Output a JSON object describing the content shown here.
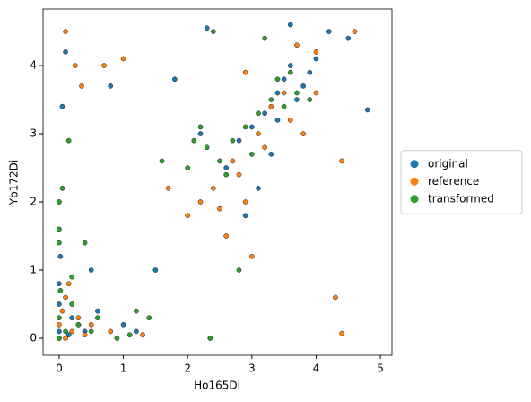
{
  "chart_data": {
    "type": "scatter",
    "xlabel": "Ho165Di",
    "ylabel": "Yb172Di",
    "xlim": [
      -0.25,
      5.18
    ],
    "ylim": [
      -0.25,
      4.83
    ],
    "xticks": [
      0,
      1,
      2,
      3,
      4,
      5
    ],
    "yticks": [
      0,
      1,
      2,
      3,
      4
    ],
    "grid": false,
    "legend": "right",
    "series": [
      {
        "name": "original",
        "color": "#1f77b4",
        "x": [
          0,
          0,
          0.02,
          0.05,
          0.1,
          0.2,
          0.3,
          0.4,
          0.15,
          0,
          0.6,
          0.8,
          1.0,
          1.2,
          0.5,
          0,
          0,
          2.3,
          2.6,
          2.8,
          3.0,
          3.2,
          3.4,
          3.5,
          3.6,
          3.7,
          3.8,
          3.9,
          4.0,
          3.3,
          3.1,
          2.9,
          2.2,
          1.8,
          1.5,
          3.6,
          3.4,
          4.2,
          4.5,
          4.8
        ],
        "values": [
          0.1,
          0.5,
          1.2,
          3.4,
          4.2,
          0.3,
          0.2,
          0.1,
          0.05,
          0.8,
          0.4,
          3.7,
          0.2,
          0.1,
          1.0,
          2.0,
          0,
          4.55,
          2.5,
          2.9,
          3.1,
          3.3,
          3.6,
          3.8,
          4.0,
          3.5,
          3.7,
          3.9,
          4.1,
          2.7,
          2.2,
          1.8,
          3.0,
          3.8,
          1.0,
          4.6,
          3.2,
          4.5,
          4.4,
          3.35
        ]
      },
      {
        "name": "reference",
        "color": "#ff7f0e",
        "x": [
          0,
          0.05,
          0.1,
          0.2,
          0.3,
          0.4,
          0.5,
          0.15,
          0.25,
          0.7,
          0.1,
          0.8,
          1.3,
          0.35,
          2.0,
          2.4,
          2.7,
          2.9,
          3.1,
          3.3,
          3.5,
          3.6,
          3.8,
          4.0,
          2.5,
          2.8,
          3.2,
          3.0,
          2.6,
          4.3,
          4.6,
          4.4,
          1.7,
          1.0,
          3.7,
          2.2,
          2.9,
          4.0,
          0.1,
          4.4
        ],
        "values": [
          0.2,
          0.4,
          0.6,
          0.1,
          0.3,
          0.05,
          0.2,
          0.8,
          4.0,
          4.0,
          4.5,
          0.1,
          0.05,
          3.7,
          1.8,
          2.2,
          2.6,
          2.0,
          3.0,
          3.4,
          3.6,
          3.2,
          3.0,
          4.2,
          1.9,
          2.4,
          2.8,
          1.2,
          1.5,
          0.6,
          4.5,
          0.07,
          2.2,
          4.1,
          4.3,
          2.0,
          3.9,
          3.6,
          0,
          2.6
        ]
      },
      {
        "name": "transformed",
        "color": "#2ca02c",
        "x": [
          0,
          0,
          0,
          0.05,
          0.1,
          0.2,
          0.3,
          0.5,
          0.4,
          0.6,
          0,
          0,
          0.9,
          1.1,
          1.4,
          2.0,
          2.3,
          2.5,
          2.7,
          2.9,
          3.1,
          3.3,
          3.5,
          3.7,
          3.9,
          2.6,
          3.0,
          3.4,
          2.2,
          2.4,
          1.6,
          0.2,
          0.15,
          2.8,
          3.2,
          2.35,
          3.6,
          0.02,
          1.2,
          2.1
        ],
        "values": [
          0,
          0.3,
          1.4,
          2.2,
          0.1,
          0.5,
          0.2,
          0.1,
          1.4,
          0.3,
          1.6,
          2.0,
          0,
          0.05,
          0.3,
          2.5,
          2.8,
          2.6,
          2.9,
          3.1,
          3.3,
          3.5,
          3.4,
          3.6,
          3.5,
          2.4,
          2.7,
          3.8,
          3.1,
          4.5,
          2.6,
          0.9,
          2.9,
          1.0,
          4.4,
          0,
          3.9,
          0.7,
          0.4,
          2.9
        ]
      }
    ]
  }
}
